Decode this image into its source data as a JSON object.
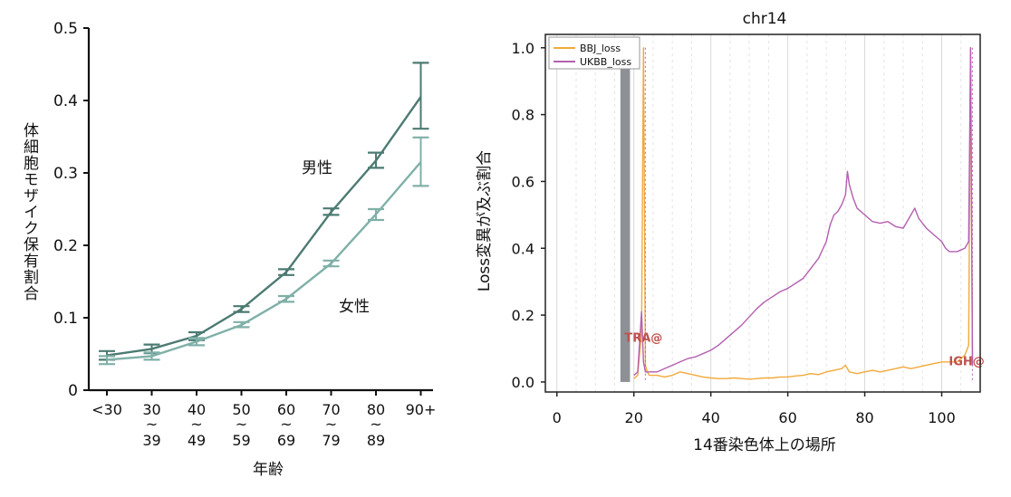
{
  "chart_data": [
    {
      "type": "line",
      "title": "",
      "xlabel": "年齢",
      "ylabel": "体細胞モザイク保有割合",
      "categories": [
        "<30",
        "30~39",
        "40~49",
        "50~59",
        "60~69",
        "70~79",
        "80~89",
        "90+"
      ],
      "tick_labels": [
        [
          "<30"
        ],
        [
          "30",
          "~",
          "39"
        ],
        [
          "40",
          "~",
          "49"
        ],
        [
          "50",
          "~",
          "59"
        ],
        [
          "60",
          "~",
          "69"
        ],
        [
          "70",
          "~",
          "79"
        ],
        [
          "80",
          "~",
          "89"
        ],
        [
          "90+"
        ]
      ],
      "ylim": [
        0,
        0.5
      ],
      "yticks": [
        0,
        0.1,
        0.2,
        0.3,
        0.4,
        0.5
      ],
      "ytick_labels": [
        "0",
        "0.1",
        "0.2",
        "0.3",
        "0.4",
        "0.5"
      ],
      "series": [
        {
          "name": "男性",
          "color": "#4c7a72",
          "values": [
            0.048,
            0.057,
            0.075,
            0.112,
            0.163,
            0.246,
            0.317,
            0.405
          ],
          "err_low": [
            0.042,
            0.051,
            0.069,
            0.108,
            0.159,
            0.242,
            0.307,
            0.361
          ],
          "err_high": [
            0.054,
            0.063,
            0.08,
            0.116,
            0.167,
            0.251,
            0.328,
            0.452
          ]
        },
        {
          "name": "女性",
          "color": "#7fb0a8",
          "values": [
            0.042,
            0.047,
            0.067,
            0.09,
            0.126,
            0.175,
            0.243,
            0.315
          ],
          "err_low": [
            0.036,
            0.042,
            0.062,
            0.087,
            0.122,
            0.171,
            0.235,
            0.282
          ],
          "err_high": [
            0.047,
            0.052,
            0.072,
            0.094,
            0.13,
            0.179,
            0.25,
            0.349
          ]
        }
      ],
      "grid": false,
      "legend": "inline labels"
    },
    {
      "type": "line",
      "title": "chr14",
      "xlabel": "14番染色体上の場所",
      "ylabel": "Loss変異が及ぶ割合",
      "xlim": [
        -3,
        110
      ],
      "ylim": [
        -0.03,
        1.04
      ],
      "xticks": [
        0,
        20,
        40,
        60,
        80,
        100
      ],
      "yticks": [
        0.0,
        0.2,
        0.4,
        0.6,
        0.8,
        1.0
      ],
      "xtick_labels": [
        "0",
        "20",
        "40",
        "60",
        "80",
        "100"
      ],
      "ytick_labels": [
        "0.0",
        "0.2",
        "0.4",
        "0.6",
        "0.8",
        "1.0"
      ],
      "legend": "top-left",
      "grid": true,
      "centromere_band": [
        16.5,
        19.0
      ],
      "grid_lines": [
        5,
        10,
        15,
        25,
        30,
        35,
        45,
        50,
        55,
        65,
        70,
        75,
        85,
        90,
        95,
        105
      ],
      "annotations": [
        {
          "text": "TRA@",
          "x": 22.5,
          "y": 0.12,
          "color": "#c0504d"
        },
        {
          "text": "IGH@",
          "x": 106.5,
          "y": 0.05,
          "color": "#c0504d"
        }
      ],
      "series": [
        {
          "name": "BBJ_loss",
          "color": "#f2a93b",
          "x": [
            20,
            21,
            22,
            22.5,
            23,
            23.5,
            24,
            26,
            28,
            30,
            32,
            34,
            36,
            38,
            40,
            42,
            44,
            46,
            48,
            50,
            52,
            54,
            56,
            58,
            60,
            62,
            64,
            66,
            68,
            70,
            72,
            74,
            75,
            76,
            78,
            80,
            82,
            84,
            86,
            88,
            90,
            92,
            94,
            96,
            98,
            100,
            102,
            104,
            105,
            106,
            107,
            107.5,
            108
          ],
          "values": [
            0.01,
            0.02,
            0.15,
            1.0,
            0.05,
            0.03,
            0.02,
            0.02,
            0.015,
            0.02,
            0.03,
            0.025,
            0.02,
            0.015,
            0.012,
            0.01,
            0.01,
            0.012,
            0.01,
            0.008,
            0.01,
            0.012,
            0.012,
            0.015,
            0.015,
            0.018,
            0.02,
            0.025,
            0.022,
            0.03,
            0.035,
            0.04,
            0.05,
            0.03,
            0.025,
            0.03,
            0.035,
            0.03,
            0.035,
            0.04,
            0.045,
            0.04,
            0.045,
            0.05,
            0.055,
            0.06,
            0.06,
            0.06,
            0.07,
            0.08,
            0.11,
            1.0,
            0.06
          ]
        },
        {
          "name": "UKBB_loss",
          "color": "#b45fb0",
          "x": [
            20,
            21,
            22,
            22.5,
            23,
            24,
            26,
            28,
            30,
            32,
            34,
            36,
            38,
            40,
            42,
            44,
            46,
            48,
            50,
            52,
            54,
            56,
            58,
            60,
            62,
            64,
            66,
            68,
            70,
            71,
            72,
            73,
            74,
            75,
            75.5,
            76,
            77,
            78,
            80,
            82,
            84,
            86,
            88,
            90,
            92,
            93,
            94,
            96,
            98,
            100,
            101,
            102,
            104,
            106,
            107,
            107.5,
            108
          ],
          "values": [
            0.02,
            0.03,
            0.21,
            0.06,
            0.03,
            0.03,
            0.03,
            0.04,
            0.05,
            0.06,
            0.07,
            0.075,
            0.085,
            0.095,
            0.11,
            0.13,
            0.15,
            0.17,
            0.195,
            0.22,
            0.24,
            0.255,
            0.27,
            0.28,
            0.295,
            0.31,
            0.34,
            0.37,
            0.42,
            0.47,
            0.5,
            0.51,
            0.53,
            0.56,
            0.63,
            0.59,
            0.55,
            0.52,
            0.5,
            0.48,
            0.475,
            0.48,
            0.465,
            0.46,
            0.5,
            0.52,
            0.49,
            0.46,
            0.44,
            0.42,
            0.4,
            0.39,
            0.39,
            0.4,
            0.42,
            1.0,
            0.05
          ]
        }
      ]
    }
  ]
}
